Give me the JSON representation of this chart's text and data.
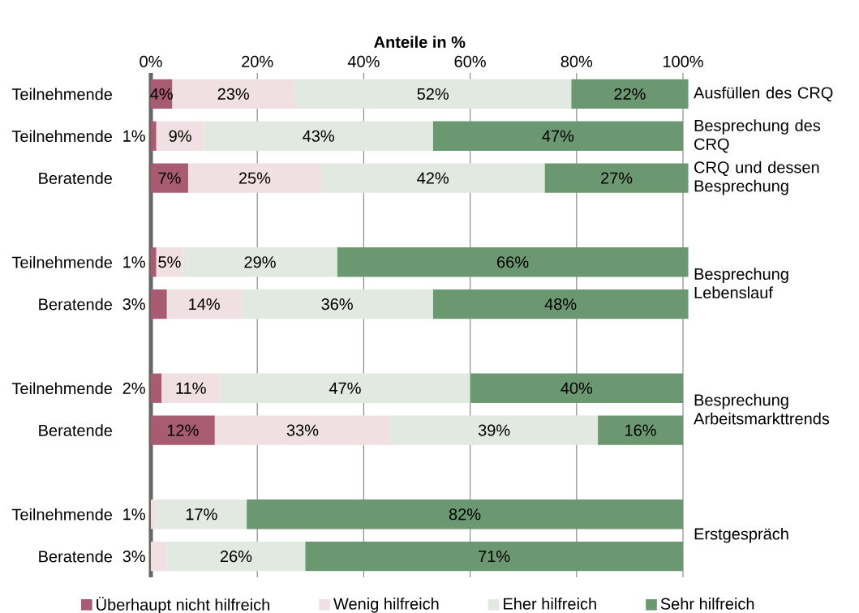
{
  "chart_data": {
    "type": "bar",
    "orientation": "horizontal",
    "stacked": true,
    "xlabel": "Anteile in %",
    "categories": [
      "Teilnehmende",
      "Teilnehmende",
      "Beratende",
      null,
      "Teilnehmende",
      "Beratende",
      null,
      "Teilnehmende",
      "Beratende",
      null,
      "Teilnehmende",
      "Beratende"
    ],
    "series": [
      {
        "name": "Überhaupt nicht hilfreich",
        "color": "#a85c74",
        "values": [
          4,
          1,
          7,
          null,
          1,
          3,
          null,
          2,
          12,
          null,
          0,
          0
        ],
        "value_labels": [
          "4%",
          "1%",
          "7%",
          null,
          "1%",
          "3%",
          null,
          "2%",
          "12%",
          null,
          null,
          null
        ]
      },
      {
        "name": "Wenig hilfreich",
        "color": "#f0dfe3",
        "values": [
          23,
          9,
          25,
          null,
          5,
          14,
          null,
          11,
          33,
          null,
          1,
          3
        ],
        "value_labels": [
          "23%",
          "9%",
          "25%",
          null,
          "5%",
          "14%",
          null,
          "11%",
          "33%",
          null,
          "1%",
          "3%"
        ]
      },
      {
        "name": "Eher hilfreich",
        "color": "#e2e9e1",
        "values": [
          52,
          43,
          42,
          null,
          29,
          36,
          null,
          47,
          39,
          null,
          17,
          26
        ],
        "value_labels": [
          "52%",
          "43%",
          "42%",
          null,
          "29%",
          "36%",
          null,
          "47%",
          "39%",
          null,
          "17%",
          "26%"
        ]
      },
      {
        "name": "Sehr hilfreich",
        "color": "#6b9870",
        "values": [
          22,
          47,
          27,
          null,
          66,
          48,
          null,
          40,
          16,
          null,
          82,
          71
        ],
        "value_labels": [
          "22%",
          "47%",
          "27%",
          null,
          "66%",
          "48%",
          null,
          "40%",
          "16%",
          null,
          "82%",
          "71%"
        ]
      }
    ],
    "xlim": [
      0,
      101
    ],
    "xticks": [
      {
        "value": 0,
        "label": "0%"
      },
      {
        "value": 20,
        "label": "20%"
      },
      {
        "value": 40,
        "label": "40%"
      },
      {
        "value": 60,
        "label": "60%"
      },
      {
        "value": 80,
        "label": "80%"
      },
      {
        "value": 100,
        "label": "100%"
      }
    ],
    "grid": "x",
    "legend": "bottom",
    "annotations": [
      "Ausfüllen des CRQ",
      "Besprechung des CRQ",
      "CRQ und dessen Besprechung",
      "Besprechung Lebenslauf",
      "Besprechung Arbeitsmarkttrends",
      "Erstgespräch"
    ]
  }
}
